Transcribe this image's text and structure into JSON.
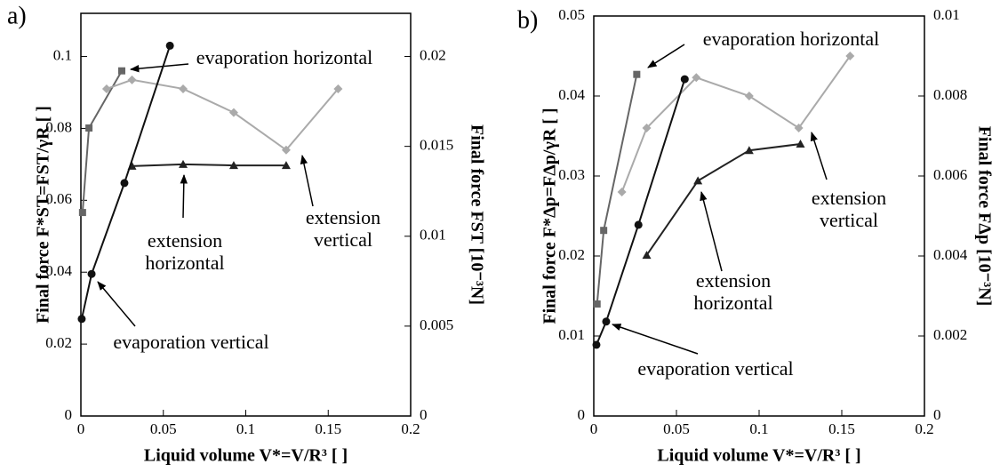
{
  "chart_data": [
    {
      "type": "line",
      "panel_label": "a)",
      "xlabel": "Liquid volume V*=V/R³ [ ]",
      "ylabel": "Final force F*ST=FST/γR [ ]",
      "y2label": "Final force FST [10⁻³N]",
      "xlim": [
        0,
        0.2
      ],
      "ylim": [
        0,
        0.112
      ],
      "y2lim": [
        0,
        0.0224
      ],
      "xticks": [
        0,
        0.05,
        0.1,
        0.15,
        0.2
      ],
      "yticks": [
        0,
        0.02,
        0.04,
        0.06,
        0.08,
        0.1
      ],
      "y2ticks": [
        0,
        0.005,
        0.01,
        0.015,
        0.02
      ],
      "series": [
        {
          "name": "evaporation horizontal",
          "color": "#666666",
          "marker": "square",
          "x": [
            0.001,
            0.0049,
            0.0248
          ],
          "values": [
            0.0566,
            0.0801,
            0.096
          ]
        },
        {
          "name": "extension vertical",
          "color": "#aaaaaa",
          "marker": "diamond",
          "x": [
            0.0156,
            0.031,
            0.062,
            0.0927,
            0.1245,
            0.156
          ],
          "values": [
            0.091,
            0.0935,
            0.091,
            0.0844,
            0.074,
            0.091
          ]
        },
        {
          "name": "extension horizontal",
          "color": "#222222",
          "marker": "triangle",
          "x": [
            0.031,
            0.062,
            0.0927,
            0.1245
          ],
          "values": [
            0.0695,
            0.07,
            0.0697,
            0.0697
          ]
        },
        {
          "name": "evaporation vertical",
          "color": "#111111",
          "marker": "circle",
          "x": [
            0.0005,
            0.0065,
            0.0264,
            0.054
          ],
          "values": [
            0.027,
            0.0395,
            0.0648,
            0.103
          ]
        }
      ]
    },
    {
      "type": "line",
      "panel_label": "b)",
      "xlabel": "Liquid volume V*=V/R³ [ ]",
      "ylabel": "Final force F*Δp=FΔp/γR [ ]",
      "y2label": "Final force FΔp [10⁻³N]",
      "xlim": [
        0,
        0.2
      ],
      "ylim": [
        0,
        0.05
      ],
      "y2lim": [
        0,
        0.01
      ],
      "xticks": [
        0,
        0.05,
        0.1,
        0.15,
        0.2
      ],
      "yticks": [
        0,
        0.01,
        0.02,
        0.03,
        0.04,
        0.05
      ],
      "y2ticks": [
        0,
        0.002,
        0.004,
        0.006,
        0.008,
        0.01
      ],
      "series": [
        {
          "name": "evaporation horizontal",
          "color": "#666666",
          "marker": "square",
          "x": [
            0.002,
            0.006,
            0.026
          ],
          "values": [
            0.014,
            0.0232,
            0.0427
          ]
        },
        {
          "name": "extension vertical",
          "color": "#aaaaaa",
          "marker": "diamond",
          "x": [
            0.017,
            0.032,
            0.062,
            0.094,
            0.124,
            0.155
          ],
          "values": [
            0.028,
            0.036,
            0.0423,
            0.04,
            0.036,
            0.045
          ]
        },
        {
          "name": "extension horizontal",
          "color": "#222222",
          "marker": "triangle",
          "x": [
            0.032,
            0.063,
            0.094,
            0.125
          ],
          "values": [
            0.0201,
            0.0294,
            0.0332,
            0.034
          ]
        },
        {
          "name": "evaporation vertical",
          "color": "#111111",
          "marker": "circle",
          "x": [
            0.0016,
            0.0075,
            0.027,
            0.055
          ],
          "values": [
            0.0089,
            0.0118,
            0.0239,
            0.0421
          ]
        }
      ]
    }
  ]
}
